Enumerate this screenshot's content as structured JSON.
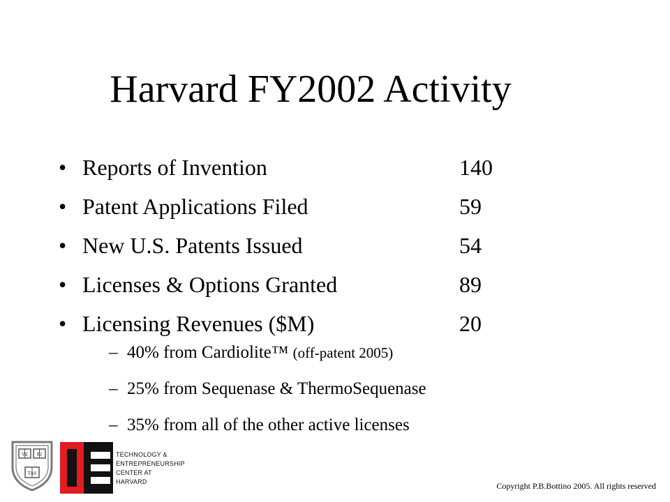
{
  "slide": {
    "title": "Harvard FY2002 Activity",
    "bullets": [
      {
        "label": "Reports of Invention",
        "value": "140"
      },
      {
        "label": "Patent Applications Filed",
        "value": "59"
      },
      {
        "label": "New U.S. Patents Issued",
        "value": "54"
      },
      {
        "label": "Licenses & Options Granted",
        "value": "89"
      },
      {
        "label": "Licensing Revenues ($M)",
        "value": "20"
      }
    ],
    "bullet_symbol": "•",
    "sub_dash": "–",
    "sub_bullets": [
      {
        "text": "40% from Cardiolite™ ",
        "note": "(off-patent 2005)"
      },
      {
        "text": "25% from Sequenase & ThermoSequenase",
        "note": ""
      },
      {
        "text": "35% from all of the other active licenses",
        "note": ""
      }
    ]
  },
  "footer": {
    "seal_words": [
      "VE",
      "RI",
      "TAS"
    ],
    "tec_lines": [
      "TECHNOLOGY &",
      "ENTREPRENEURSHIP",
      "CENTER AT",
      "HARVARD"
    ],
    "copyright": "Copyright P.B.Bottino 2005. All rights reserved",
    "colors": {
      "logo_red": "#e31b23",
      "logo_black": "#111111",
      "seal_gray": "#7a7a7a"
    }
  }
}
